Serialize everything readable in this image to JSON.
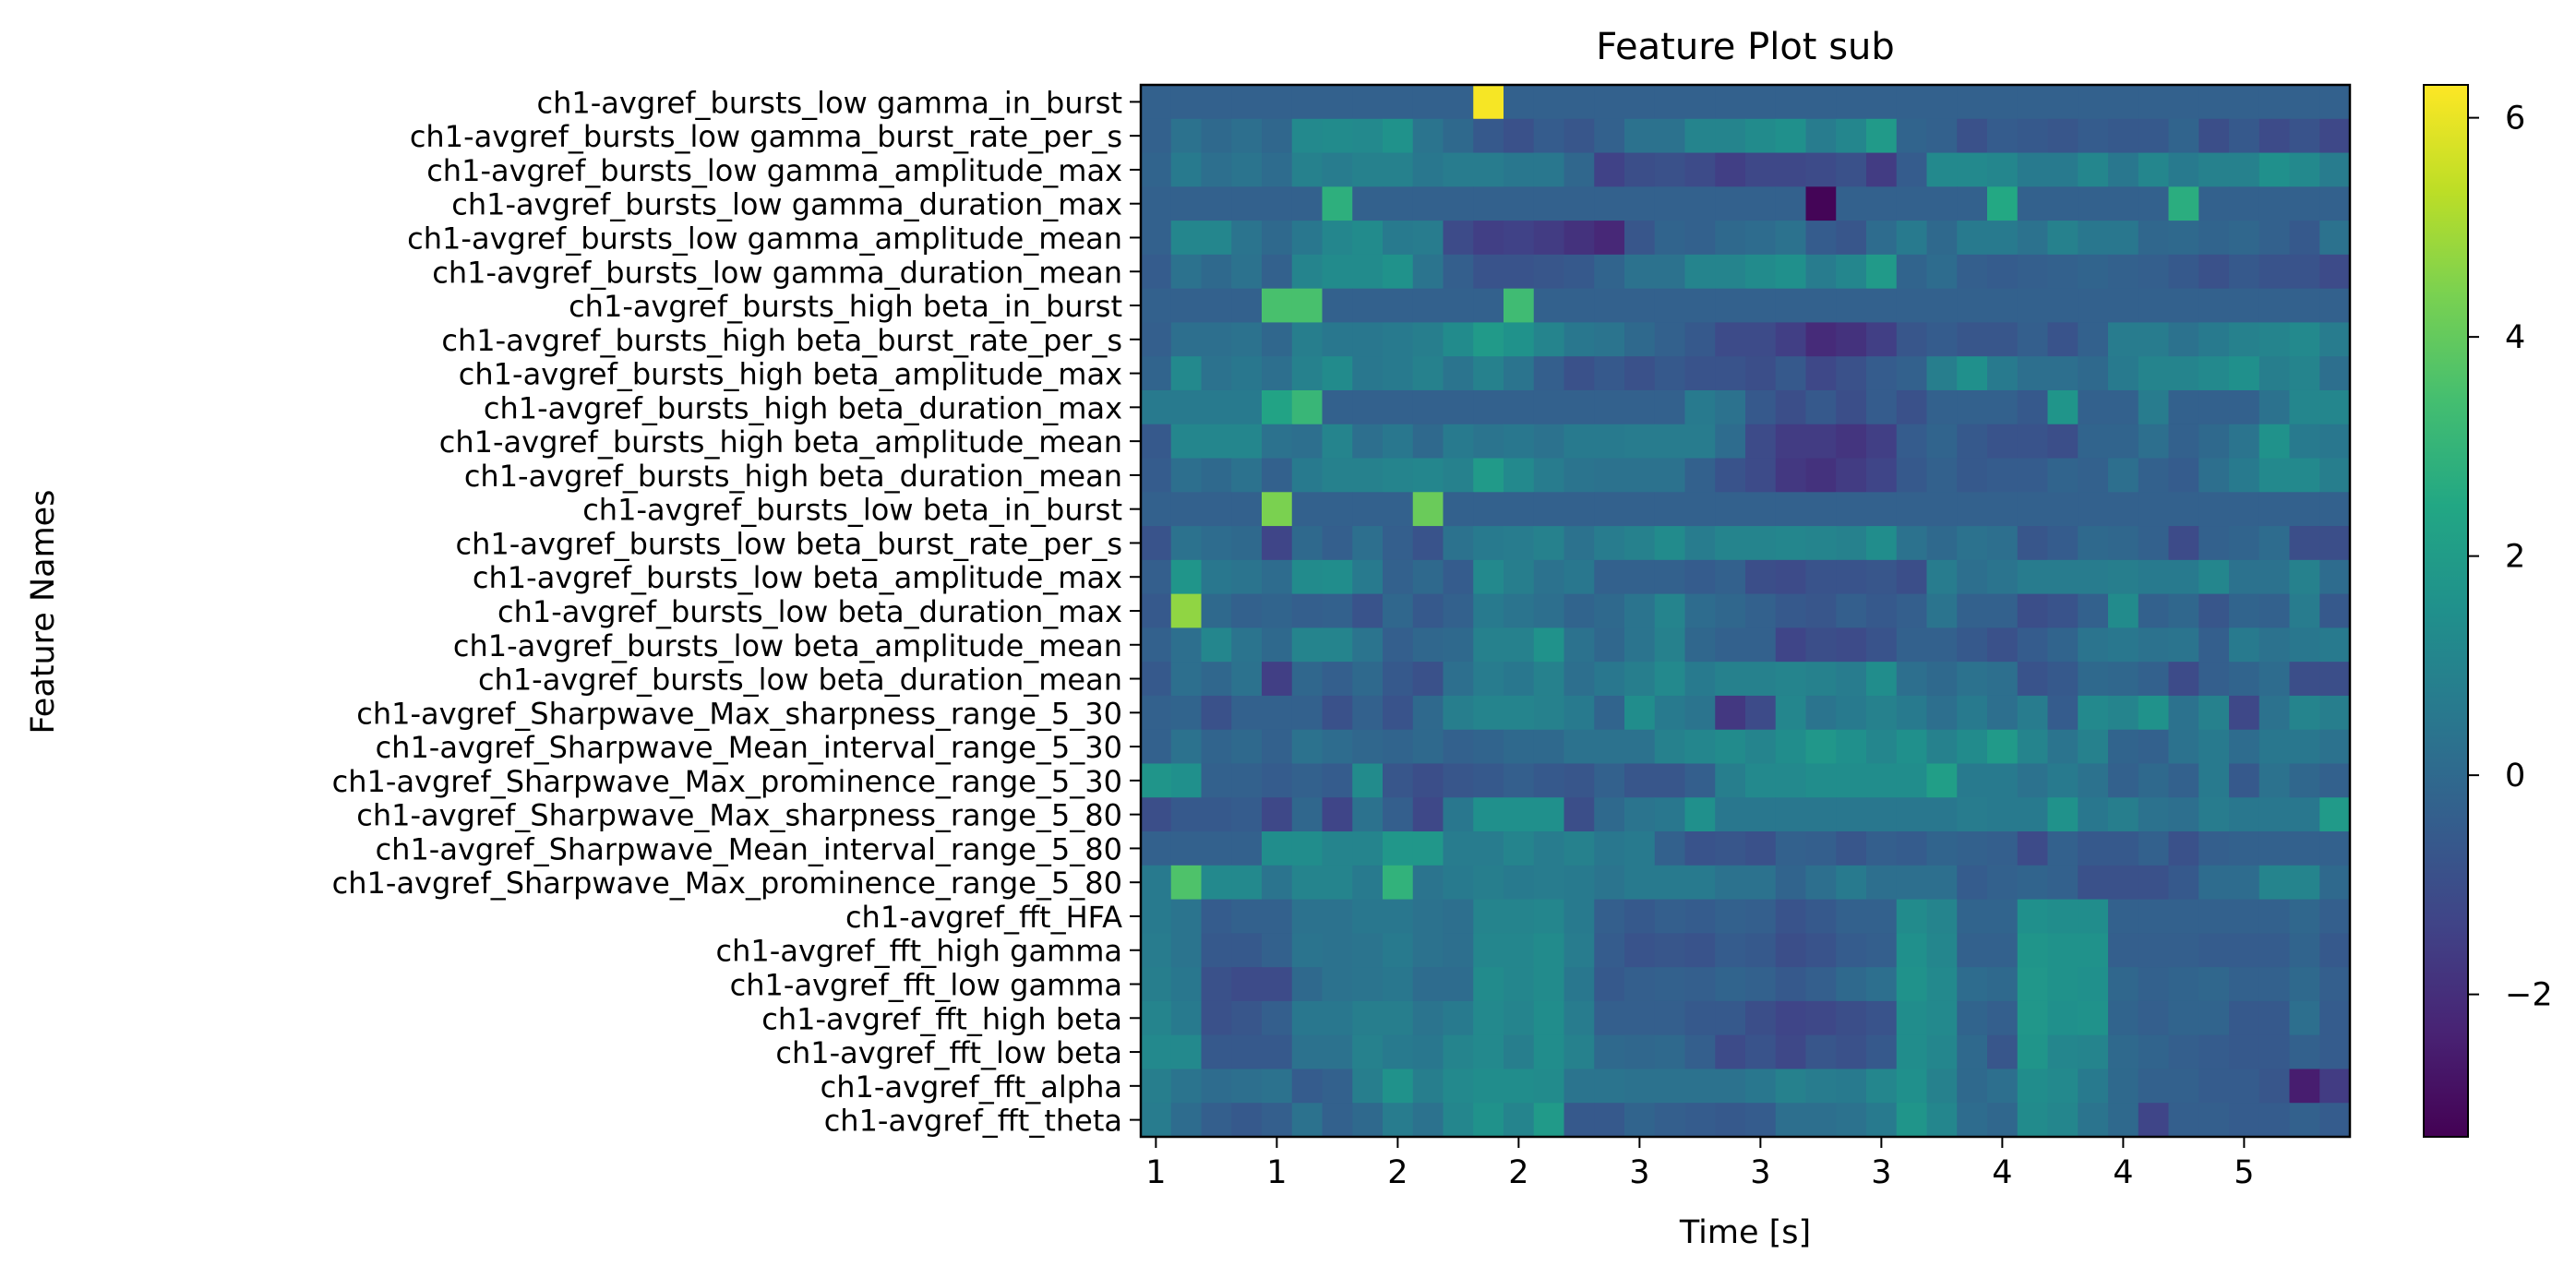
{
  "chart_data": {
    "type": "heatmap",
    "title": "Feature Plot sub",
    "xlabel": "Time [s]",
    "ylabel": "Feature Names",
    "x_tick_labels": [
      "1",
      "1",
      "2",
      "2",
      "3",
      "3",
      "3",
      "4",
      "4",
      "5"
    ],
    "y_labels": [
      "ch1-avgref_bursts_low gamma_in_burst",
      "ch1-avgref_bursts_low gamma_burst_rate_per_s",
      "ch1-avgref_bursts_low gamma_amplitude_max",
      "ch1-avgref_bursts_low gamma_duration_max",
      "ch1-avgref_bursts_low gamma_amplitude_mean",
      "ch1-avgref_bursts_low gamma_duration_mean",
      "ch1-avgref_bursts_high beta_in_burst",
      "ch1-avgref_bursts_high beta_burst_rate_per_s",
      "ch1-avgref_bursts_high beta_amplitude_max",
      "ch1-avgref_bursts_high beta_duration_max",
      "ch1-avgref_bursts_high beta_amplitude_mean",
      "ch1-avgref_bursts_high beta_duration_mean",
      "ch1-avgref_bursts_low beta_in_burst",
      "ch1-avgref_bursts_low beta_burst_rate_per_s",
      "ch1-avgref_bursts_low beta_amplitude_max",
      "ch1-avgref_bursts_low beta_duration_max",
      "ch1-avgref_bursts_low beta_amplitude_mean",
      "ch1-avgref_bursts_low beta_duration_mean",
      "ch1-avgref_Sharpwave_Max_sharpness_range_5_30",
      "ch1-avgref_Sharpwave_Mean_interval_range_5_30",
      "ch1-avgref_Sharpwave_Max_prominence_range_5_30",
      "ch1-avgref_Sharpwave_Max_sharpness_range_5_80",
      "ch1-avgref_Sharpwave_Mean_interval_range_5_80",
      "ch1-avgref_Sharpwave_Max_prominence_range_5_80",
      "ch1-avgref_fft_HFA",
      "ch1-avgref_fft_high gamma",
      "ch1-avgref_fft_low gamma",
      "ch1-avgref_fft_high beta",
      "ch1-avgref_fft_low beta",
      "ch1-avgref_fft_alpha",
      "ch1-avgref_fft_theta"
    ],
    "colorbar_ticks": [
      6,
      4,
      2,
      0,
      -2
    ],
    "colorbar_tick_labels": [
      "6",
      "4",
      "2",
      "0",
      "−2"
    ],
    "vmin": -3.3,
    "vmax": 6.3,
    "colormap": "viridis",
    "n_columns": 40,
    "values": [
      [
        -0.3,
        -0.3,
        -0.3,
        -0.3,
        -0.3,
        -0.3,
        -0.3,
        -0.3,
        -0.3,
        -0.3,
        -0.3,
        6.2,
        -0.3,
        -0.3,
        -0.3,
        -0.3,
        -0.3,
        -0.3,
        -0.3,
        -0.3,
        -0.3,
        -0.3,
        -0.3,
        -0.3,
        -0.3,
        -0.3,
        -0.3,
        -0.3,
        -0.3,
        -0.3,
        -0.3,
        -0.3,
        -0.3,
        -0.3,
        -0.3,
        -0.3,
        -0.3,
        -0.3,
        -0.3,
        -0.3
      ],
      [
        -0.3,
        0.3,
        0.0,
        0.2,
        -0.1,
        1.2,
        1.3,
        1.2,
        1.6,
        0.4,
        0.0,
        -0.6,
        -0.9,
        -0.5,
        -0.7,
        -0.3,
        0.3,
        0.3,
        1.0,
        1.0,
        1.3,
        1.5,
        0.7,
        1.1,
        1.9,
        -0.2,
        -0.3,
        -0.9,
        -0.5,
        -0.6,
        -0.7,
        -0.5,
        -0.6,
        -0.6,
        -0.2,
        -1.0,
        -0.6,
        -1.1,
        -0.8,
        -1.2
      ],
      [
        -0.2,
        0.6,
        0.2,
        0.4,
        0.1,
        0.9,
        0.7,
        0.9,
        0.9,
        0.5,
        0.7,
        0.7,
        0.5,
        0.5,
        -0.1,
        -1.4,
        -1.0,
        -0.9,
        -1.1,
        -1.5,
        -1.2,
        -1.2,
        -1.1,
        -0.9,
        -1.6,
        -0.5,
        1.2,
        1.2,
        1.1,
        0.6,
        0.6,
        1.1,
        0.5,
        1.1,
        0.6,
        0.9,
        0.9,
        1.5,
        1.2,
        0.7
      ],
      [
        -0.3,
        -0.3,
        -0.3,
        -0.3,
        -0.3,
        -0.3,
        2.8,
        -0.3,
        -0.3,
        -0.3,
        -0.3,
        -0.3,
        -0.3,
        -0.3,
        -0.3,
        -0.3,
        -0.3,
        -0.3,
        -0.3,
        -0.3,
        -0.3,
        -0.3,
        -3.2,
        -0.3,
        -0.3,
        -0.3,
        -0.3,
        -0.3,
        2.5,
        -0.3,
        -0.3,
        -0.3,
        -0.3,
        -0.3,
        2.7,
        -0.3,
        -0.3,
        -0.3,
        -0.3,
        -0.3
      ],
      [
        -0.3,
        1.1,
        1.1,
        0.4,
        0.0,
        0.5,
        1.1,
        1.3,
        0.6,
        0.7,
        -1.1,
        -1.5,
        -1.4,
        -1.6,
        -1.9,
        -2.2,
        -0.7,
        -0.2,
        -0.3,
        0.0,
        0.1,
        0.3,
        -0.5,
        -0.7,
        0.1,
        0.6,
        0.0,
        0.6,
        0.6,
        0.3,
        0.9,
        0.5,
        0.5,
        -0.1,
        0.0,
        -0.2,
        -0.1,
        -0.3,
        -0.6,
        0.3
      ],
      [
        -0.5,
        0.3,
        0.0,
        0.3,
        -0.3,
        1.0,
        1.3,
        1.3,
        1.6,
        0.4,
        -0.4,
        -0.8,
        -0.8,
        -0.7,
        -0.6,
        -0.2,
        0.3,
        0.3,
        1.0,
        1.0,
        1.3,
        1.5,
        0.7,
        1.1,
        1.9,
        -0.2,
        0.1,
        -0.4,
        -0.5,
        -0.4,
        -0.3,
        -0.2,
        -0.3,
        -0.4,
        -0.6,
        -0.9,
        -0.6,
        -0.8,
        -0.8,
        -1.1
      ],
      [
        -0.3,
        -0.3,
        -0.3,
        -0.3,
        3.5,
        3.5,
        -0.3,
        -0.3,
        -0.3,
        -0.3,
        -0.3,
        -0.3,
        3.3,
        -0.3,
        -0.3,
        -0.3,
        -0.3,
        -0.3,
        -0.3,
        -0.3,
        -0.3,
        -0.3,
        -0.3,
        -0.3,
        -0.3,
        -0.3,
        -0.3,
        -0.3,
        -0.3,
        -0.3,
        -0.3,
        -0.3,
        -0.3,
        -0.3,
        -0.3,
        -0.3,
        -0.3,
        -0.3,
        -0.3,
        -0.3
      ],
      [
        -0.4,
        0.2,
        0.2,
        0.3,
        -0.1,
        0.8,
        0.5,
        0.5,
        0.6,
        0.8,
        1.3,
        1.9,
        1.6,
        1.0,
        0.5,
        0.4,
        0.0,
        -0.3,
        -0.6,
        -1.1,
        -1.1,
        -1.5,
        -2.1,
        -1.9,
        -1.5,
        -0.7,
        -0.5,
        -0.7,
        -0.7,
        -0.4,
        -0.8,
        -0.3,
        0.7,
        0.7,
        0.3,
        0.6,
        0.9,
        1.0,
        1.2,
        0.7
      ],
      [
        -0.2,
        1.2,
        0.3,
        0.5,
        0.2,
        0.9,
        1.3,
        0.5,
        0.6,
        0.9,
        0.4,
        0.9,
        0.4,
        -0.4,
        -0.9,
        -0.6,
        -0.9,
        -0.6,
        -0.8,
        -0.8,
        -1.0,
        -0.6,
        -1.2,
        -0.9,
        -0.5,
        -0.3,
        0.8,
        1.5,
        0.6,
        0.2,
        0.2,
        0.0,
        0.6,
        1.0,
        1.0,
        1.2,
        1.5,
        0.8,
        1.0,
        0.2
      ],
      [
        0.6,
        0.6,
        0.6,
        0.6,
        2.3,
        3.1,
        -0.3,
        -0.3,
        -0.3,
        -0.3,
        -0.3,
        -0.3,
        -0.3,
        -0.3,
        -0.3,
        -0.3,
        -0.3,
        -0.3,
        0.6,
        0.3,
        -0.6,
        -1.0,
        -0.6,
        -1.0,
        -0.5,
        -0.9,
        -0.3,
        -0.3,
        -0.3,
        -0.6,
        1.7,
        -0.3,
        -0.3,
        0.7,
        -0.3,
        -0.3,
        -0.3,
        0.3,
        1.1,
        1.1
      ],
      [
        -0.6,
        1.1,
        1.1,
        1.1,
        0.3,
        0.2,
        1.0,
        0.2,
        0.5,
        0.0,
        0.6,
        0.4,
        0.5,
        0.3,
        0.6,
        0.6,
        0.7,
        0.7,
        0.7,
        0.1,
        -1.1,
        -1.6,
        -1.6,
        -1.8,
        -1.5,
        -0.5,
        -0.2,
        -0.6,
        -0.8,
        -0.8,
        -1.0,
        -0.2,
        -0.2,
        0.2,
        -0.3,
        0.0,
        0.4,
        1.6,
        0.6,
        0.5
      ],
      [
        -0.5,
        0.2,
        0.0,
        0.3,
        -0.3,
        0.6,
        0.9,
        0.9,
        1.0,
        1.1,
        0.9,
        1.9,
        1.2,
        0.7,
        0.4,
        0.3,
        0.3,
        0.3,
        -0.3,
        -0.8,
        -1.1,
        -1.7,
        -1.9,
        -1.6,
        -1.3,
        -0.6,
        -0.3,
        -0.6,
        -0.5,
        -0.5,
        -0.2,
        -0.3,
        0.2,
        -0.3,
        -0.5,
        0.2,
        0.6,
        1.2,
        1.2,
        0.8
      ],
      [
        -0.3,
        -0.3,
        -0.3,
        -0.3,
        4.4,
        -0.3,
        -0.3,
        -0.3,
        -0.3,
        4.1,
        -0.3,
        -0.3,
        -0.3,
        -0.3,
        -0.3,
        -0.3,
        -0.3,
        -0.3,
        -0.3,
        -0.3,
        -0.3,
        -0.3,
        -0.3,
        -0.3,
        -0.3,
        -0.3,
        -0.3,
        -0.3,
        -0.3,
        -0.3,
        -0.3,
        -0.3,
        -0.3,
        -0.3,
        -0.3,
        -0.3,
        -0.3,
        -0.3,
        -0.3,
        -0.3
      ],
      [
        -0.8,
        0.3,
        0.1,
        0.0,
        -1.3,
        0.0,
        -0.4,
        0.2,
        -0.4,
        -0.8,
        0.3,
        0.6,
        0.7,
        0.9,
        0.3,
        0.7,
        0.9,
        1.3,
        0.7,
        1.0,
        1.0,
        1.1,
        1.0,
        0.9,
        1.4,
        0.3,
        0.0,
        0.3,
        0.2,
        -0.7,
        -0.5,
        0.0,
        -0.1,
        -0.3,
        -1.1,
        -0.3,
        -0.2,
        0.1,
        -1.0,
        -1.0
      ],
      [
        -0.4,
        1.7,
        0.5,
        0.4,
        0.1,
        1.3,
        1.4,
        0.6,
        -0.3,
        0.0,
        -0.5,
        1.2,
        0.8,
        0.3,
        0.5,
        -0.3,
        -0.3,
        -0.3,
        -0.5,
        -0.3,
        -1.0,
        -1.1,
        -0.8,
        -0.8,
        -0.7,
        -1.0,
        0.7,
        0.2,
        0.4,
        0.7,
        0.7,
        0.7,
        0.8,
        0.6,
        0.6,
        1.1,
        0.3,
        0.3,
        0.9,
        0.1
      ],
      [
        -0.6,
        4.7,
        0.0,
        -0.3,
        -0.2,
        -0.4,
        -0.3,
        -0.8,
        -0.1,
        -0.6,
        -0.3,
        0.6,
        0.4,
        0.2,
        -0.2,
        0.0,
        0.4,
        1.0,
        0.1,
        -0.1,
        -0.3,
        -0.6,
        -0.7,
        -0.4,
        -0.6,
        -0.4,
        0.4,
        -0.3,
        -0.3,
        -1.0,
        -0.8,
        -0.3,
        1.3,
        -0.3,
        -0.1,
        -0.7,
        -0.2,
        -0.3,
        0.7,
        -0.6
      ],
      [
        -0.3,
        0.2,
        1.1,
        0.4,
        0.0,
        1.0,
        1.0,
        0.4,
        -0.4,
        -0.1,
        0.0,
        0.9,
        0.9,
        1.6,
        0.3,
        -0.1,
        0.4,
        0.9,
        -0.1,
        -0.3,
        -0.3,
        -1.3,
        -1.0,
        -1.1,
        -0.8,
        -0.3,
        -0.3,
        -0.6,
        -0.9,
        -0.5,
        -0.2,
        0.4,
        0.5,
        0.3,
        0.4,
        -0.4,
        0.6,
        0.3,
        0.5,
        0.6
      ],
      [
        -0.6,
        0.2,
        -0.1,
        0.3,
        -1.5,
        -0.1,
        -0.4,
        0.0,
        -0.6,
        -0.9,
        0.2,
        0.7,
        0.5,
        0.9,
        0.2,
        0.5,
        0.8,
        1.2,
        0.6,
        0.9,
        0.9,
        1.0,
        0.9,
        0.7,
        1.4,
        0.2,
        0.0,
        0.3,
        0.2,
        -0.8,
        -0.6,
        0.0,
        -0.1,
        -0.3,
        -1.1,
        -0.4,
        -0.2,
        0.1,
        -1.0,
        -1.0
      ],
      [
        -0.3,
        -0.2,
        -0.9,
        -0.3,
        -0.3,
        -0.3,
        -0.9,
        -0.3,
        -0.8,
        0.0,
        0.8,
        1.0,
        1.0,
        0.9,
        0.6,
        -0.2,
        1.4,
        0.6,
        0.4,
        -1.7,
        -1.1,
        1.1,
        0.4,
        0.6,
        0.9,
        0.6,
        0.2,
        0.6,
        0.2,
        0.7,
        -0.5,
        1.2,
        1.0,
        1.6,
        0.3,
        0.9,
        -1.2,
        0.3,
        1.0,
        0.8
      ],
      [
        -0.3,
        0.3,
        -0.2,
        0.0,
        -0.3,
        0.3,
        0.1,
        -0.1,
        -0.2,
        0.0,
        -0.3,
        -0.2,
        0.0,
        0.0,
        0.3,
        0.3,
        0.3,
        0.9,
        1.1,
        1.3,
        1.0,
        1.4,
        1.8,
        1.5,
        1.1,
        1.5,
        0.9,
        1.3,
        1.9,
        1.0,
        0.4,
        0.9,
        -0.2,
        -0.3,
        0.3,
        0.6,
        0.1,
        0.5,
        0.5,
        0.3
      ],
      [
        1.7,
        1.5,
        -0.3,
        -0.3,
        -0.5,
        -0.3,
        -0.5,
        1.3,
        -0.7,
        -1.0,
        -0.7,
        -0.6,
        -0.4,
        -0.6,
        -0.7,
        -0.3,
        -0.7,
        -0.7,
        -0.4,
        0.8,
        1.2,
        1.2,
        1.4,
        1.4,
        1.4,
        1.4,
        2.1,
        0.6,
        0.6,
        0.3,
        0.6,
        0.3,
        -0.3,
        0.0,
        -0.3,
        0.6,
        -0.6,
        0.3,
        -0.1,
        -0.3
      ],
      [
        -1.0,
        -0.6,
        -0.6,
        -0.5,
        -1.2,
        -0.1,
        -1.3,
        0.3,
        -0.4,
        -1.2,
        0.5,
        1.5,
        1.5,
        1.5,
        -1.0,
        0.0,
        0.4,
        0.5,
        1.5,
        0.5,
        0.5,
        0.5,
        0.5,
        0.5,
        0.5,
        0.5,
        0.5,
        0.7,
        0.6,
        0.6,
        1.6,
        0.5,
        0.8,
        0.3,
        0.2,
        0.7,
        0.5,
        0.5,
        0.5,
        1.9
      ],
      [
        -0.3,
        -0.3,
        -0.3,
        -0.3,
        1.4,
        1.4,
        1.0,
        1.0,
        1.8,
        1.8,
        0.7,
        0.7,
        1.0,
        0.7,
        0.9,
        0.5,
        0.6,
        -0.3,
        -0.8,
        -0.7,
        -0.9,
        -0.3,
        -0.4,
        -0.7,
        -0.4,
        -0.5,
        -0.2,
        -0.3,
        -0.4,
        -1.1,
        -0.3,
        -0.6,
        -0.6,
        -0.3,
        -0.9,
        -0.4,
        -0.3,
        -0.3,
        -0.3,
        -0.3
      ],
      [
        0.6,
        3.6,
        1.2,
        1.2,
        0.4,
        1.0,
        1.0,
        0.6,
        2.9,
        0.4,
        0.6,
        0.8,
        0.6,
        0.7,
        0.6,
        0.4,
        0.6,
        0.6,
        0.6,
        0.3,
        0.3,
        -0.2,
        0.2,
        0.6,
        0.2,
        0.2,
        0.2,
        -0.5,
        -0.3,
        -0.2,
        -0.3,
        -0.9,
        -0.9,
        -0.9,
        -0.6,
        0.1,
        0.1,
        1.0,
        1.0,
        0.0
      ],
      [
        0.6,
        0.4,
        -0.5,
        -0.3,
        -0.3,
        0.3,
        0.3,
        0.5,
        0.5,
        0.3,
        0.2,
        1.0,
        1.0,
        1.1,
        0.6,
        -0.4,
        -0.6,
        -0.4,
        -0.5,
        -0.3,
        -0.4,
        -0.8,
        -0.6,
        -0.3,
        -0.3,
        1.3,
        1.0,
        -0.2,
        -0.2,
        1.5,
        1.4,
        1.4,
        -0.3,
        -0.3,
        -0.3,
        -0.3,
        -0.3,
        -0.3,
        -0.1,
        -0.4
      ],
      [
        0.7,
        0.4,
        -0.6,
        -0.6,
        -0.3,
        0.4,
        0.3,
        0.4,
        0.6,
        0.3,
        0.2,
        1.1,
        1.1,
        1.3,
        0.7,
        -0.5,
        -0.8,
        -0.7,
        -0.8,
        -0.5,
        -0.6,
        -1.0,
        -0.8,
        -0.5,
        -0.4,
        1.5,
        1.1,
        -0.3,
        -0.3,
        1.7,
        1.6,
        1.6,
        -0.4,
        -0.4,
        -0.4,
        -0.5,
        -0.5,
        -0.5,
        -0.2,
        -0.6
      ],
      [
        0.8,
        0.5,
        -0.9,
        -1.1,
        -1.1,
        0.0,
        0.3,
        0.4,
        0.5,
        0.1,
        0.1,
        1.3,
        1.1,
        1.3,
        0.5,
        -0.6,
        -0.4,
        -0.3,
        -0.4,
        -0.2,
        -0.3,
        -0.6,
        -0.4,
        0.0,
        0.2,
        1.6,
        1.2,
        0.1,
        0.0,
        1.8,
        1.6,
        1.5,
        -0.1,
        -0.3,
        -0.2,
        -0.1,
        -0.3,
        -0.3,
        0.0,
        -0.4
      ],
      [
        1.0,
        0.6,
        -0.9,
        -0.7,
        -0.4,
        0.5,
        0.5,
        0.8,
        0.8,
        0.4,
        0.6,
        1.2,
        1.0,
        1.4,
        0.7,
        -0.4,
        -0.4,
        -0.4,
        -0.6,
        -0.6,
        -1.0,
        -1.3,
        -1.2,
        -1.0,
        -0.8,
        1.4,
        1.2,
        -0.2,
        -0.4,
        1.8,
        1.5,
        1.6,
        -0.2,
        -0.4,
        -0.2,
        -0.2,
        -0.6,
        -0.6,
        0.2,
        -0.5
      ],
      [
        1.2,
        1.2,
        -0.6,
        -0.6,
        -0.6,
        0.3,
        0.3,
        0.9,
        0.6,
        0.5,
        1.0,
        1.2,
        0.8,
        1.4,
        0.9,
        0.0,
        -0.1,
        0.0,
        -0.4,
        -1.1,
        -0.8,
        -1.2,
        -0.7,
        -0.9,
        -0.6,
        1.4,
        1.1,
        0.0,
        -0.7,
        1.7,
        1.1,
        1.0,
        0.0,
        -0.2,
        -0.4,
        -0.5,
        -0.6,
        -0.6,
        -0.3,
        -0.5
      ],
      [
        0.8,
        0.4,
        0.1,
        0.2,
        0.3,
        -0.5,
        -0.3,
        0.8,
        1.6,
        0.8,
        1.2,
        1.4,
        1.4,
        1.3,
        0.4,
        0.4,
        0.3,
        0.3,
        0.3,
        0.3,
        0.5,
        0.9,
        0.7,
        0.6,
        1.1,
        1.5,
        0.9,
        0.0,
        0.2,
        1.4,
        1.2,
        0.6,
        0.0,
        -0.3,
        -0.3,
        -0.5,
        -0.5,
        -0.7,
        -2.5,
        -1.6
      ],
      [
        0.7,
        0.1,
        -0.4,
        -0.6,
        -0.4,
        0.3,
        -0.3,
        0.0,
        0.7,
        0.3,
        1.1,
        1.6,
        1.0,
        1.9,
        -0.6,
        -0.6,
        -0.2,
        -0.4,
        -0.5,
        -0.6,
        -0.5,
        0.2,
        0.2,
        0.3,
        0.6,
        1.7,
        1.1,
        0.1,
        -0.1,
        1.3,
        1.1,
        0.4,
        0.0,
        -1.3,
        -0.4,
        -0.4,
        -0.5,
        -0.5,
        -0.3,
        -0.5
      ]
    ]
  }
}
